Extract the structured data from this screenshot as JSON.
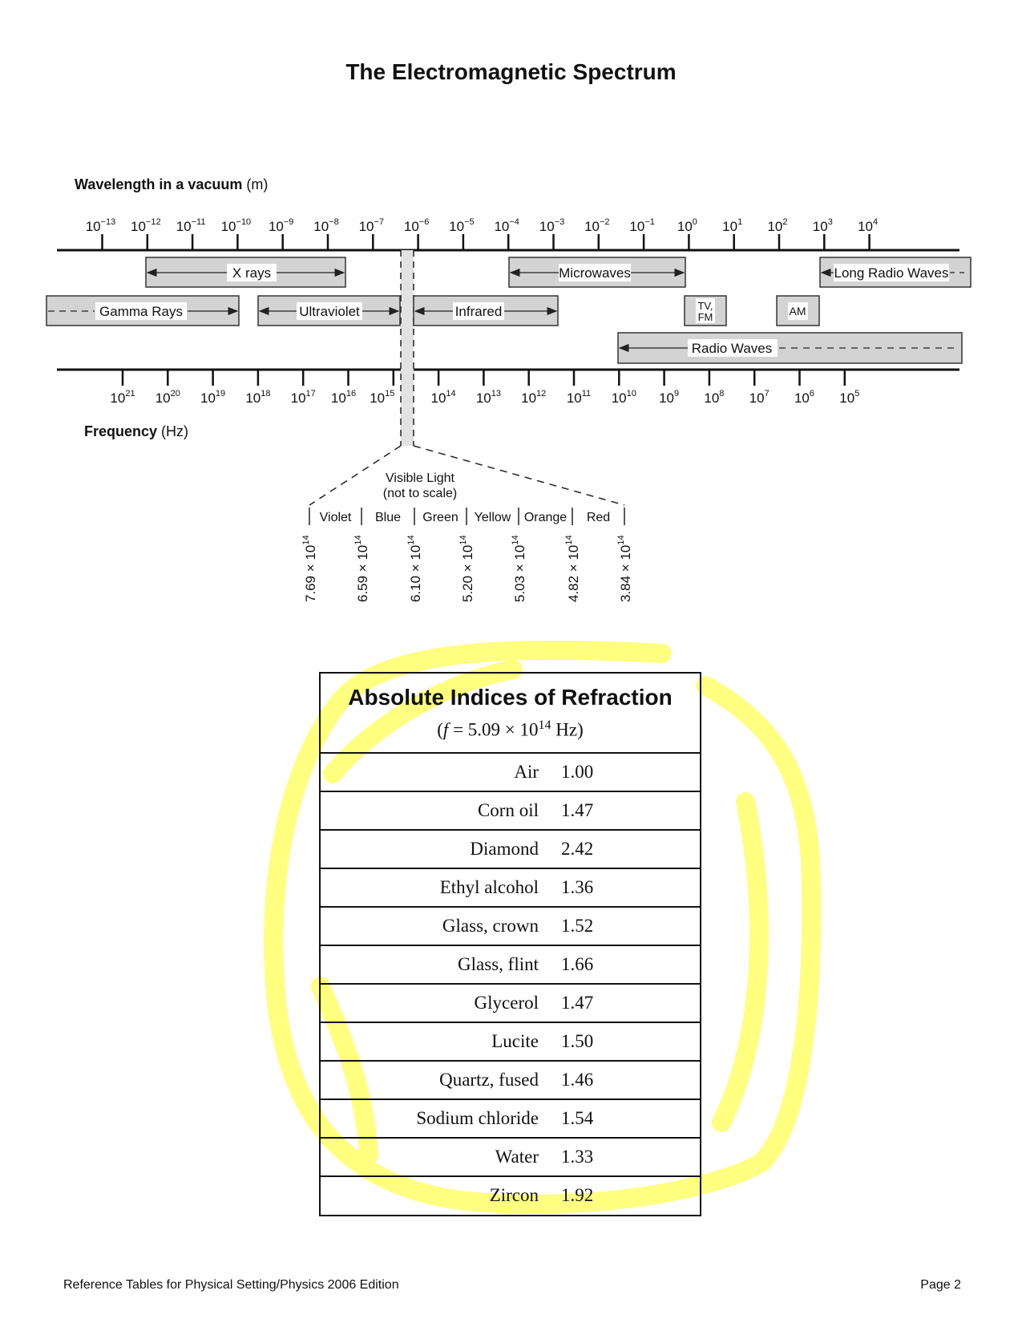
{
  "title": "The Electromagnetic Spectrum",
  "wavelength_axis": {
    "label_bold": "Wavelength in a vacuum",
    "unit": "(m)",
    "exponents": [
      "−13",
      "−12",
      "−11",
      "−10",
      "−9",
      "−8",
      "−7",
      "−6",
      "−5",
      "−4",
      "−3",
      "−2",
      "−1",
      "0",
      "1",
      "2",
      "3",
      "4"
    ]
  },
  "frequency_axis": {
    "label_bold": "Frequency",
    "unit": "(Hz)",
    "exponents": [
      "21",
      "20",
      "19",
      "18",
      "17",
      "16",
      "15",
      "14",
      "13",
      "12",
      "11",
      "10",
      "9",
      "8",
      "7",
      "6",
      "5"
    ]
  },
  "bands": {
    "xrays": "X rays",
    "gamma": "Gamma Rays",
    "ultraviolet": "Ultraviolet",
    "infrared": "Infrared",
    "microwaves": "Microwaves",
    "long_radio": "Long Radio Waves",
    "tvfm_1": "TV,",
    "tvfm_2": "FM",
    "am": "AM",
    "radio": "Radio Waves"
  },
  "visible": {
    "title": "Visible Light",
    "subtitle": "(not to scale)",
    "colors": [
      "Violet",
      "Blue",
      "Green",
      "Yellow",
      "Orange",
      "Red"
    ],
    "boundaries": [
      "7.69 × 10",
      "6.59 × 10",
      "6.10 × 10",
      "5.20 × 10",
      "5.03 × 10",
      "4.82 × 10",
      "3.84 × 10"
    ],
    "boundary_exponent": "14"
  },
  "refraction_table": {
    "title": "Absolute Indices of Refraction",
    "subtitle_pre": "(",
    "subtitle_f": "f",
    "subtitle_mid": " = 5.09 × 10",
    "subtitle_exp": "14",
    "subtitle_post": " Hz)",
    "rows": [
      {
        "name": "Air",
        "value": "1.00"
      },
      {
        "name": "Corn oil",
        "value": "1.47"
      },
      {
        "name": "Diamond",
        "value": "2.42"
      },
      {
        "name": "Ethyl alcohol",
        "value": "1.36"
      },
      {
        "name": "Glass, crown",
        "value": "1.52"
      },
      {
        "name": "Glass, flint",
        "value": "1.66"
      },
      {
        "name": "Glycerol",
        "value": "1.47"
      },
      {
        "name": "Lucite",
        "value": "1.50"
      },
      {
        "name": "Quartz, fused",
        "value": "1.46"
      },
      {
        "name": "Sodium chloride",
        "value": "1.54"
      },
      {
        "name": "Water",
        "value": "1.33"
      },
      {
        "name": "Zircon",
        "value": "1.92"
      }
    ]
  },
  "highlight_color": "#ffff80",
  "footer": {
    "left": "Reference Tables for Physical Setting/Physics 2006 Edition",
    "right": "Page  2"
  }
}
